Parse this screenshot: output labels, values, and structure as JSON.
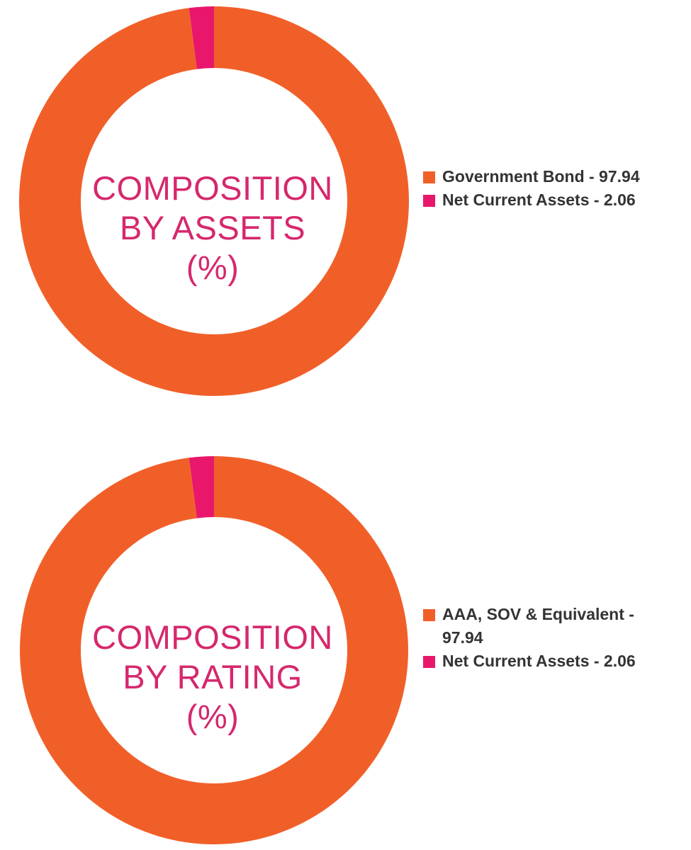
{
  "chart_data": [
    {
      "type": "pie",
      "title": "COMPOSITION BY ASSETS (%)",
      "title_lines": [
        "COMPOSITION",
        "BY ASSETS",
        "(%)"
      ],
      "title_color": "#d5286d",
      "donut": true,
      "legend_position": "right",
      "series": [
        {
          "label": "Government Bond - 97.94",
          "value": 97.94,
          "color": "#f15f29"
        },
        {
          "label": "Net Current Assets - 2.06",
          "value": 2.06,
          "color": "#e8176c"
        }
      ]
    },
    {
      "type": "pie",
      "title": "COMPOSITION BY RATING (%)",
      "title_lines": [
        "COMPOSITION",
        "BY RATING",
        "(%)"
      ],
      "title_color": "#d5286d",
      "donut": true,
      "legend_position": "right",
      "series": [
        {
          "label": "AAA, SOV & Equivalent - 97.94",
          "value": 97.94,
          "color": "#f15f29"
        },
        {
          "label": "Net Current Assets - 2.06",
          "value": 2.06,
          "color": "#e8176c"
        }
      ]
    }
  ]
}
